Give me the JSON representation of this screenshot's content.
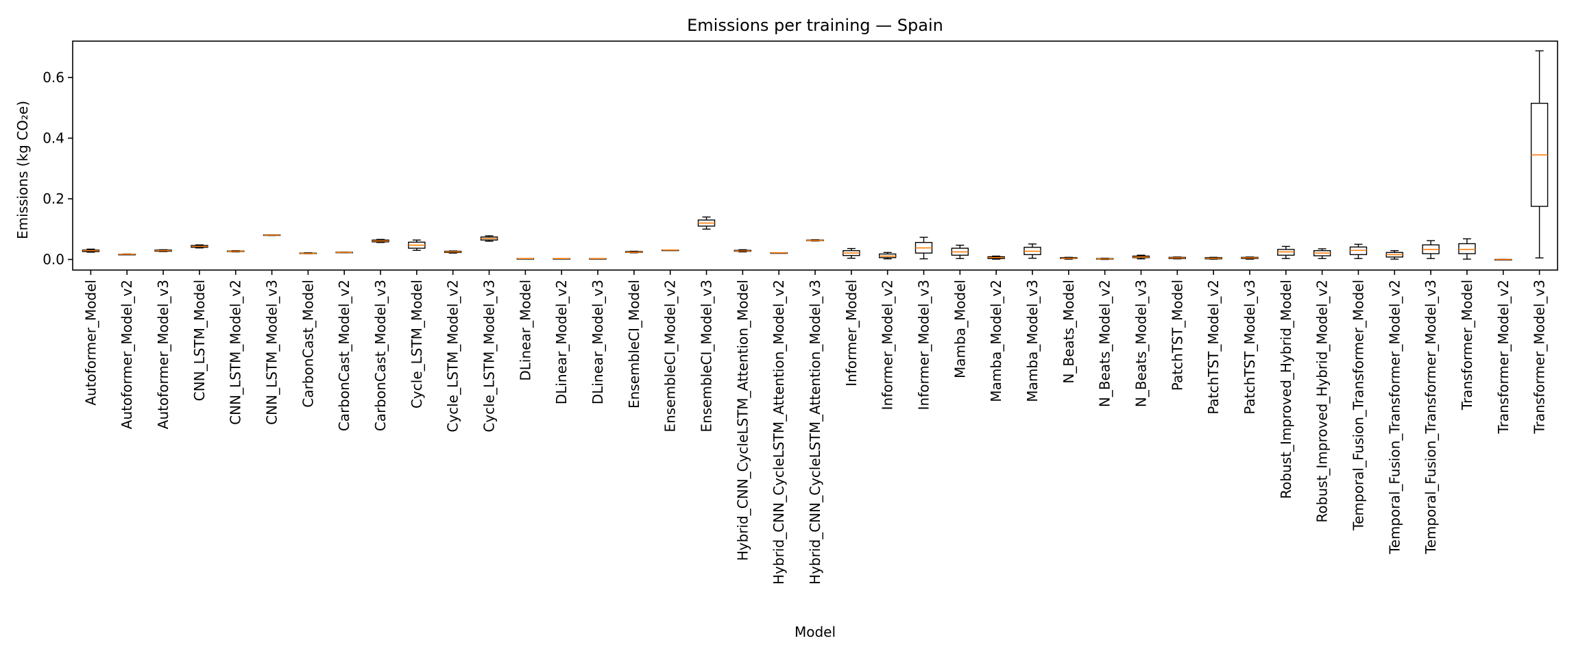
{
  "chart_data": {
    "type": "box",
    "title": "Emissions per training — Spain",
    "xlabel": "Model",
    "ylabel": "Emissions (kg CO₂e)",
    "ylim": [
      -0.035,
      0.72
    ],
    "yticks": [
      0.0,
      0.2,
      0.4,
      0.6
    ],
    "ytick_labels": [
      "0.0",
      "0.2",
      "0.4",
      "0.6"
    ],
    "grid": false,
    "colors": {
      "box": "#000000",
      "median": "#ff7f0e"
    },
    "categories": [
      "Autoformer_Model",
      "Autoformer_Model_v2",
      "Autoformer_Model_v3",
      "CNN_LSTM_Model",
      "CNN_LSTM_Model_v2",
      "CNN_LSTM_Model_v3",
      "CarbonCast_Model",
      "CarbonCast_Model_v2",
      "CarbonCast_Model_v3",
      "Cycle_LSTM_Model",
      "Cycle_LSTM_Model_v2",
      "Cycle_LSTM_Model_v3",
      "DLinear_Model",
      "DLinear_Model_v2",
      "DLinear_Model_v3",
      "EnsembleCI_Model",
      "EnsembleCI_Model_v2",
      "EnsembleCI_Model_v3",
      "Hybrid_CNN_CycleLSTM_Attention_Model",
      "Hybrid_CNN_CycleLSTM_Attention_Model_v2",
      "Hybrid_CNN_CycleLSTM_Attention_Model_v3",
      "Informer_Model",
      "Informer_Model_v2",
      "Informer_Model_v3",
      "Mamba_Model",
      "Mamba_Model_v2",
      "Mamba_Model_v3",
      "N_Beats_Model",
      "N_Beats_Model_v2",
      "N_Beats_Model_v3",
      "PatchTST_Model",
      "PatchTST_Model_v2",
      "PatchTST_Model_v3",
      "Robust_Improved_Hybrid_Model",
      "Robust_Improved_Hybrid_Model_v2",
      "Temporal_Fusion_Transformer_Model",
      "Temporal_Fusion_Transformer_Model_v2",
      "Temporal_Fusion_Transformer_Model_v3",
      "Transformer_Model",
      "Transformer_Model_v2",
      "Transformer_Model_v3"
    ],
    "boxes": [
      {
        "min": 0.024,
        "q1": 0.026,
        "median": 0.029,
        "q3": 0.031,
        "max": 0.034
      },
      {
        "min": 0.016,
        "q1": 0.016,
        "median": 0.017,
        "q3": 0.017,
        "max": 0.018
      },
      {
        "min": 0.026,
        "q1": 0.027,
        "median": 0.029,
        "q3": 0.031,
        "max": 0.032
      },
      {
        "min": 0.038,
        "q1": 0.04,
        "median": 0.043,
        "q3": 0.046,
        "max": 0.048
      },
      {
        "min": 0.025,
        "q1": 0.026,
        "median": 0.027,
        "q3": 0.028,
        "max": 0.029
      },
      {
        "min": 0.079,
        "q1": 0.08,
        "median": 0.08,
        "q3": 0.081,
        "max": 0.081
      },
      {
        "min": 0.019,
        "q1": 0.02,
        "median": 0.02,
        "q3": 0.021,
        "max": 0.022
      },
      {
        "min": 0.022,
        "q1": 0.023,
        "median": 0.023,
        "q3": 0.024,
        "max": 0.024
      },
      {
        "min": 0.056,
        "q1": 0.058,
        "median": 0.061,
        "q3": 0.064,
        "max": 0.066
      },
      {
        "min": 0.03,
        "q1": 0.037,
        "median": 0.047,
        "q3": 0.057,
        "max": 0.064
      },
      {
        "min": 0.021,
        "q1": 0.023,
        "median": 0.025,
        "q3": 0.027,
        "max": 0.028
      },
      {
        "min": 0.06,
        "q1": 0.064,
        "median": 0.069,
        "q3": 0.074,
        "max": 0.078
      },
      {
        "min": 0.002,
        "q1": 0.002,
        "median": 0.003,
        "q3": 0.003,
        "max": 0.003
      },
      {
        "min": 0.002,
        "q1": 0.002,
        "median": 0.003,
        "q3": 0.003,
        "max": 0.003
      },
      {
        "min": 0.002,
        "q1": 0.002,
        "median": 0.003,
        "q3": 0.003,
        "max": 0.003
      },
      {
        "min": 0.022,
        "q1": 0.023,
        "median": 0.024,
        "q3": 0.026,
        "max": 0.027
      },
      {
        "min": 0.03,
        "q1": 0.03,
        "median": 0.031,
        "q3": 0.031,
        "max": 0.031
      },
      {
        "min": 0.1,
        "q1": 0.11,
        "median": 0.12,
        "q3": 0.13,
        "max": 0.14
      },
      {
        "min": 0.025,
        "q1": 0.027,
        "median": 0.028,
        "q3": 0.03,
        "max": 0.032
      },
      {
        "min": 0.021,
        "q1": 0.021,
        "median": 0.022,
        "q3": 0.022,
        "max": 0.022
      },
      {
        "min": 0.061,
        "q1": 0.062,
        "median": 0.063,
        "q3": 0.064,
        "max": 0.065
      },
      {
        "min": 0.004,
        "q1": 0.013,
        "median": 0.021,
        "q3": 0.029,
        "max": 0.036
      },
      {
        "min": 0.002,
        "q1": 0.006,
        "median": 0.011,
        "q3": 0.018,
        "max": 0.023
      },
      {
        "min": 0.002,
        "q1": 0.021,
        "median": 0.038,
        "q3": 0.056,
        "max": 0.073
      },
      {
        "min": 0.003,
        "q1": 0.014,
        "median": 0.025,
        "q3": 0.037,
        "max": 0.047
      },
      {
        "min": 0.001,
        "q1": 0.003,
        "median": 0.006,
        "q3": 0.009,
        "max": 0.011
      },
      {
        "min": 0.004,
        "q1": 0.016,
        "median": 0.027,
        "q3": 0.04,
        "max": 0.051
      },
      {
        "min": 0.001,
        "q1": 0.003,
        "median": 0.004,
        "q3": 0.006,
        "max": 0.007
      },
      {
        "min": 0.0,
        "q1": 0.001,
        "median": 0.002,
        "q3": 0.003,
        "max": 0.004
      },
      {
        "min": 0.002,
        "q1": 0.006,
        "median": 0.008,
        "q3": 0.011,
        "max": 0.014
      },
      {
        "min": 0.002,
        "q1": 0.003,
        "median": 0.005,
        "q3": 0.007,
        "max": 0.008
      },
      {
        "min": 0.001,
        "q1": 0.002,
        "median": 0.004,
        "q3": 0.006,
        "max": 0.007
      },
      {
        "min": 0.001,
        "q1": 0.003,
        "median": 0.005,
        "q3": 0.007,
        "max": 0.008
      },
      {
        "min": 0.003,
        "q1": 0.014,
        "median": 0.025,
        "q3": 0.033,
        "max": 0.043
      },
      {
        "min": 0.003,
        "q1": 0.012,
        "median": 0.021,
        "q3": 0.029,
        "max": 0.035
      },
      {
        "min": 0.003,
        "q1": 0.016,
        "median": 0.03,
        "q3": 0.041,
        "max": 0.05
      },
      {
        "min": 0.001,
        "q1": 0.008,
        "median": 0.016,
        "q3": 0.023,
        "max": 0.029
      },
      {
        "min": 0.003,
        "q1": 0.019,
        "median": 0.033,
        "q3": 0.048,
        "max": 0.062
      },
      {
        "min": 0.001,
        "q1": 0.019,
        "median": 0.033,
        "q3": 0.052,
        "max": 0.068
      },
      {
        "min": 0.0,
        "q1": 0.0,
        "median": 0.0,
        "q3": 0.0,
        "max": 0.0
      },
      {
        "min": 0.005,
        "q1": 0.175,
        "median": 0.345,
        "q3": 0.515,
        "max": 0.688
      }
    ]
  }
}
